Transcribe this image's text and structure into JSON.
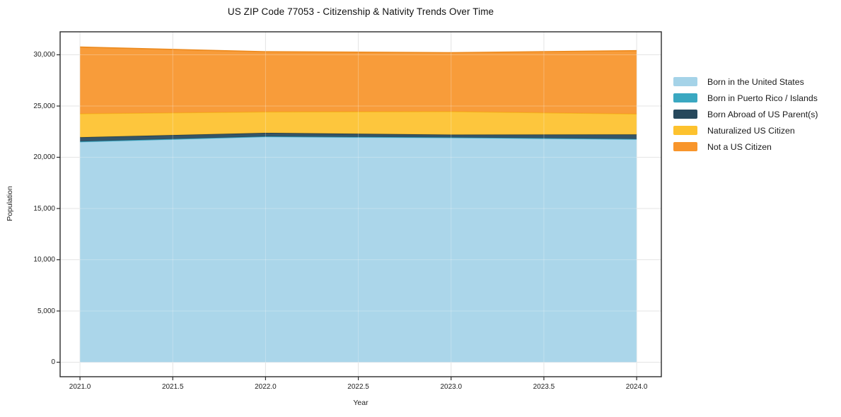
{
  "title": "US ZIP Code 77053 - Citizenship & Nativity Trends Over Time",
  "chart_data": {
    "type": "area",
    "stacked": true,
    "title": "US ZIP Code 77053 - Citizenship & Nativity Trends Over Time",
    "xlabel": "Year",
    "ylabel": "Population",
    "x": [
      2021,
      2022,
      2023,
      2024
    ],
    "series": [
      {
        "name": "Born in the United States",
        "values": [
          21500,
          22000,
          21900,
          21750
        ],
        "color": "#a5d3e8",
        "edge": "#8cc2dc"
      },
      {
        "name": "Born in Puerto Rico / Islands",
        "values": [
          30,
          30,
          30,
          30
        ],
        "color": "#3aa8c1",
        "edge": "#3aa8c1"
      },
      {
        "name": "Born Abroad of US Parent(s)",
        "values": [
          420,
          350,
          280,
          450
        ],
        "color": "#26485c",
        "edge": "#1d3a4c"
      },
      {
        "name": "Naturalized US Citizen",
        "values": [
          2300,
          2050,
          2250,
          2000
        ],
        "color": "#fdc22e",
        "edge": "#f4b71c"
      },
      {
        "name": "Not a US Citizen",
        "values": [
          6500,
          5870,
          5750,
          6170
        ],
        "color": "#f8952b",
        "edge": "#ec8a1e"
      }
    ],
    "xticks": {
      "values": [
        2021.0,
        2021.5,
        2022.0,
        2022.5,
        2023.0,
        2023.5,
        2024.0
      ],
      "labels": [
        "2021.0",
        "2021.5",
        "2022.0",
        "2022.5",
        "2023.0",
        "2023.5",
        "2024.0"
      ]
    },
    "yticks": {
      "values": [
        0,
        5000,
        10000,
        15000,
        20000,
        25000,
        30000
      ],
      "labels": [
        "0",
        "5,000",
        "10,000",
        "15,000",
        "20,000",
        "25,000",
        "30,000"
      ]
    },
    "xlim": [
      2020.893,
      2024.133
    ],
    "ylim": [
      -1414,
      32243
    ],
    "grid": true,
    "legend_position": "right",
    "frame_color": "#2b2b2b",
    "grid_color": "#dcdcdc"
  }
}
